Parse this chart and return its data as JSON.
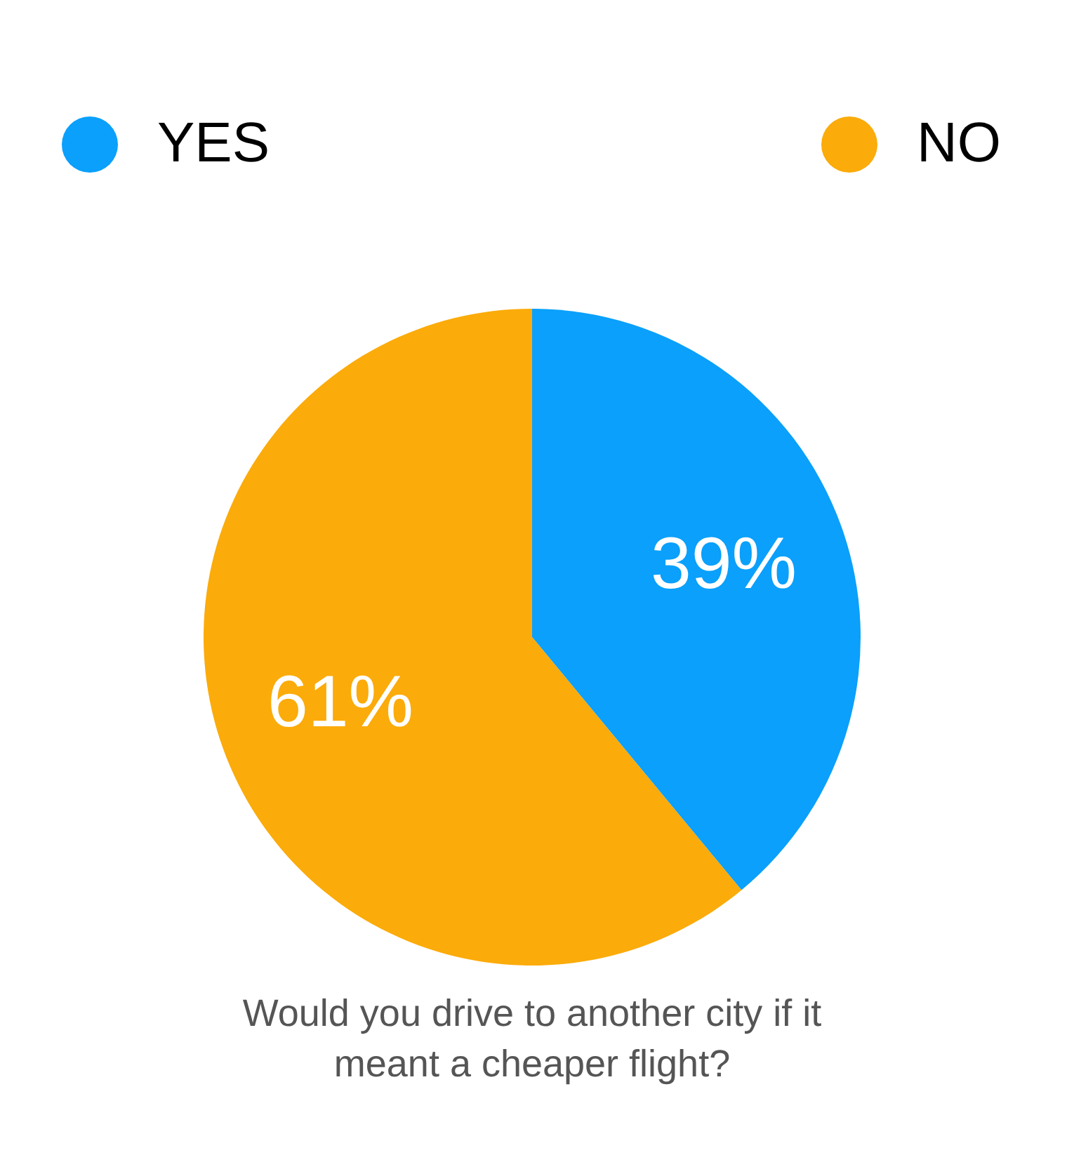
{
  "chart_data": {
    "type": "pie",
    "title": "Would you drive to another city if it meant a cheaper flight?",
    "categories": [
      "YES",
      "NO"
    ],
    "values": [
      39,
      61
    ],
    "value_labels": [
      "39%",
      "61%"
    ],
    "colors": [
      "#0aa0fb",
      "#fbab0a"
    ],
    "legend": "top"
  }
}
